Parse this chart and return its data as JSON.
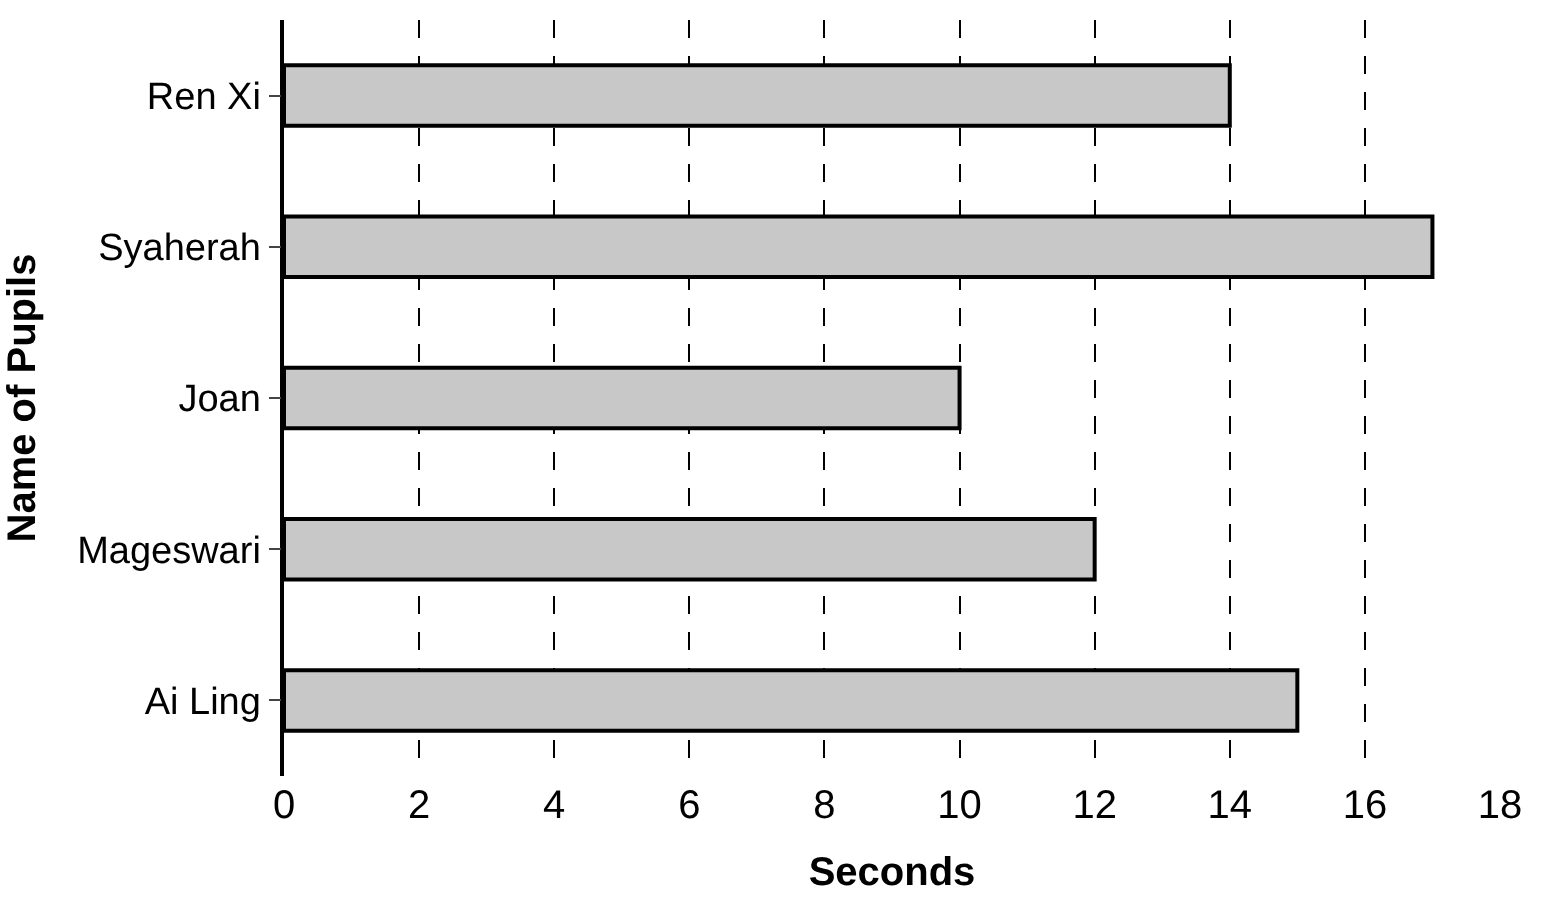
{
  "chart_data": {
    "type": "bar",
    "orientation": "horizontal",
    "xlabel": "Seconds",
    "ylabel": "Name of Pupils",
    "categories": [
      "Ren Xi",
      "Syaherah",
      "Joan",
      "Mageswari",
      "Ai Ling"
    ],
    "values": [
      14,
      17,
      10,
      12,
      15
    ],
    "color": "#c8c8c8",
    "xlim": [
      0,
      18
    ],
    "xticks": [
      0,
      2,
      4,
      6,
      8,
      10,
      12,
      14,
      16,
      18
    ],
    "grid": "x"
  }
}
